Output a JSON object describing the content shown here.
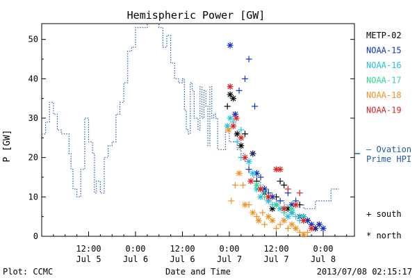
{
  "chart_data": {
    "type": "line",
    "title": "Hemispheric Power [GW]",
    "ylabel": "P [GW]",
    "xlabel": "Date and Time",
    "ylim": [
      0,
      54
    ],
    "yticks": [
      0,
      10,
      20,
      30,
      40,
      50
    ],
    "xlim_hours": [
      0,
      80
    ],
    "xticks": [
      {
        "h": 12,
        "time": "12:00",
        "date": "Jul 5"
      },
      {
        "h": 24,
        "time": "0:00",
        "date": "Jul 6"
      },
      {
        "h": 36,
        "time": "12:00",
        "date": "Jul 6"
      },
      {
        "h": 48,
        "time": "0:00",
        "date": "Jul 7"
      },
      {
        "h": 60,
        "time": "12:00",
        "date": "Jul 7"
      },
      {
        "h": 72,
        "time": "0:00",
        "date": "Jul 8"
      }
    ],
    "ovation": {
      "name": "— Ovation Prime HPI",
      "color": "#1e5aa8",
      "points": [
        [
          0,
          26
        ],
        [
          1,
          29
        ],
        [
          2,
          34
        ],
        [
          3,
          31
        ],
        [
          4,
          27
        ],
        [
          5,
          26
        ],
        [
          6,
          26
        ],
        [
          7,
          21
        ],
        [
          7.5,
          17
        ],
        [
          8,
          12
        ],
        [
          9,
          10
        ],
        [
          10,
          17
        ],
        [
          11,
          30
        ],
        [
          12,
          24
        ],
        [
          13,
          21
        ],
        [
          13.5,
          11
        ],
        [
          14,
          14
        ],
        [
          15,
          11
        ],
        [
          16,
          20
        ],
        [
          17,
          23
        ],
        [
          18,
          24
        ],
        [
          19,
          31
        ],
        [
          20,
          34
        ],
        [
          21,
          39
        ],
        [
          22,
          47
        ],
        [
          23,
          48
        ],
        [
          24,
          53
        ],
        [
          26,
          53
        ],
        [
          27,
          55
        ],
        [
          29,
          55
        ],
        [
          30,
          53
        ],
        [
          31,
          48
        ],
        [
          32,
          51
        ],
        [
          33,
          44
        ],
        [
          34,
          40
        ],
        [
          35,
          39
        ],
        [
          36,
          40
        ],
        [
          36.5,
          32
        ],
        [
          37,
          27
        ],
        [
          37.5,
          26
        ],
        [
          38,
          39
        ],
        [
          38.5,
          37
        ],
        [
          39,
          30
        ],
        [
          40,
          27
        ],
        [
          40.5,
          38
        ],
        [
          41,
          30
        ],
        [
          41.5,
          37
        ],
        [
          42,
          33
        ],
        [
          42.5,
          23
        ],
        [
          43,
          38
        ],
        [
          43.5,
          30
        ],
        [
          44,
          31
        ],
        [
          44.5,
          30
        ],
        [
          45,
          22
        ],
        [
          46,
          22
        ],
        [
          47,
          27
        ],
        [
          48,
          24
        ],
        [
          49,
          24
        ],
        [
          50,
          22
        ],
        [
          51,
          21
        ],
        [
          52,
          19
        ],
        [
          53,
          16
        ],
        [
          54,
          15
        ],
        [
          55,
          14
        ],
        [
          56,
          13
        ],
        [
          57,
          12
        ],
        [
          58,
          11
        ],
        [
          59,
          10
        ],
        [
          60,
          9
        ],
        [
          61,
          9
        ],
        [
          62,
          8
        ],
        [
          63,
          8
        ],
        [
          64,
          8
        ],
        [
          65,
          8
        ],
        [
          66,
          8
        ],
        [
          67,
          7
        ],
        [
          68,
          7
        ],
        [
          69,
          7
        ],
        [
          70,
          9
        ],
        [
          71,
          9
        ],
        [
          72,
          9
        ],
        [
          73,
          9
        ],
        [
          74,
          12
        ],
        [
          76,
          12
        ]
      ]
    },
    "series": [
      {
        "name": "METP-02",
        "color": "#000000",
        "points": [
          [
            47.5,
            33,
            "s"
          ],
          [
            48.2,
            36,
            "n"
          ],
          [
            49,
            35,
            "n"
          ],
          [
            50,
            26,
            "n"
          ],
          [
            51,
            23,
            "n"
          ],
          [
            52,
            26,
            "s"
          ],
          [
            54,
            21,
            "n"
          ],
          [
            55,
            14,
            "s"
          ],
          [
            56,
            12,
            "n"
          ],
          [
            57,
            11,
            "n"
          ],
          [
            58,
            9,
            "s"
          ],
          [
            59,
            7,
            "n"
          ],
          [
            60,
            10,
            "s"
          ],
          [
            61,
            14,
            "s"
          ],
          [
            62,
            13,
            "s"
          ],
          [
            63,
            7,
            "n"
          ],
          [
            64,
            6,
            "n"
          ],
          [
            66,
            8,
            "s"
          ],
          [
            67,
            5,
            "n"
          ],
          [
            68,
            4,
            "n"
          ],
          [
            69,
            3,
            "s"
          ],
          [
            70,
            2,
            "n"
          ],
          [
            71,
            3,
            "n"
          ]
        ]
      },
      {
        "name": "NOAA-15",
        "color": "#1030c8",
        "points": [
          [
            48.2,
            48.5,
            "n"
          ],
          [
            49.5,
            31,
            "n"
          ],
          [
            50.5,
            37,
            "s"
          ],
          [
            52,
            40,
            "s"
          ],
          [
            53,
            45,
            "s"
          ],
          [
            54.5,
            33,
            "s"
          ],
          [
            53,
            17,
            "s"
          ],
          [
            54,
            21,
            "s"
          ],
          [
            55,
            16,
            "n"
          ],
          [
            56,
            15,
            "s"
          ],
          [
            57,
            12,
            "n"
          ],
          [
            58,
            11,
            "s"
          ],
          [
            59,
            10,
            "n"
          ],
          [
            60,
            8,
            "n"
          ],
          [
            61,
            9,
            "s"
          ],
          [
            62,
            7,
            "n"
          ],
          [
            63,
            11,
            "s"
          ],
          [
            64,
            8,
            "n"
          ],
          [
            65,
            9,
            "s"
          ],
          [
            66,
            5,
            "n"
          ],
          [
            67,
            4,
            "s"
          ],
          [
            68,
            4,
            "n"
          ],
          [
            69,
            3,
            "n"
          ],
          [
            70,
            2,
            "s"
          ],
          [
            71,
            3,
            "n"
          ],
          [
            72,
            2,
            "n"
          ]
        ]
      },
      {
        "name": "NOAA-16",
        "color": "#20c0e0",
        "points": [
          [
            47.5,
            28,
            "n"
          ],
          [
            48.2,
            30,
            "n"
          ],
          [
            49,
            29,
            "s"
          ],
          [
            51,
            27,
            "s"
          ],
          [
            50,
            24,
            "s"
          ],
          [
            51,
            20,
            "s"
          ],
          [
            53,
            19,
            "n"
          ],
          [
            54,
            16,
            "n"
          ],
          [
            55,
            12,
            "n"
          ],
          [
            56,
            10,
            "n"
          ],
          [
            57,
            11,
            "s"
          ],
          [
            58,
            9,
            "n"
          ],
          [
            59,
            8,
            "s"
          ],
          [
            61,
            7,
            "n"
          ],
          [
            62,
            6,
            "s"
          ],
          [
            63,
            5,
            "n"
          ],
          [
            64,
            6,
            "n"
          ],
          [
            65,
            5,
            "s"
          ],
          [
            66,
            4,
            "s"
          ],
          [
            67,
            5,
            "n"
          ]
        ]
      },
      {
        "name": "NOAA-17",
        "color": "#30d890",
        "points": [
          [
            55,
            13,
            "n"
          ],
          [
            57,
            10,
            "s"
          ],
          [
            60,
            8,
            "n"
          ],
          [
            62,
            6,
            "s"
          ],
          [
            64,
            7,
            "n"
          ],
          [
            66,
            5,
            "s"
          ]
        ]
      },
      {
        "name": "NOAA-18",
        "color": "#f09020",
        "points": [
          [
            47.8,
            27,
            "n"
          ],
          [
            48.5,
            9,
            "s"
          ],
          [
            49.5,
            13,
            "s"
          ],
          [
            50.5,
            16,
            "n"
          ],
          [
            51.5,
            13,
            "s"
          ],
          [
            52,
            8,
            "n"
          ],
          [
            53,
            8,
            "s"
          ],
          [
            54,
            6,
            "n"
          ],
          [
            55,
            5,
            "s"
          ],
          [
            55.5,
            4,
            "n"
          ],
          [
            56.5,
            6,
            "s"
          ],
          [
            57,
            3,
            "s"
          ],
          [
            58,
            5,
            "n"
          ],
          [
            59,
            4,
            "n"
          ],
          [
            60,
            2,
            "s"
          ],
          [
            61,
            3,
            "s"
          ],
          [
            62,
            4,
            "n"
          ],
          [
            63,
            2,
            "s"
          ],
          [
            64,
            3,
            "n"
          ],
          [
            65,
            2,
            "n"
          ],
          [
            66,
            1,
            "s"
          ],
          [
            67,
            0.5,
            "n"
          ],
          [
            68,
            1,
            "s"
          ]
        ]
      },
      {
        "name": "NOAA-19",
        "color": "#e02020",
        "points": [
          [
            48.2,
            38,
            "n"
          ],
          [
            49,
            28,
            "n"
          ],
          [
            49.8,
            30,
            "n"
          ],
          [
            51,
            25,
            "n"
          ],
          [
            52,
            20,
            "n"
          ],
          [
            53.5,
            14,
            "n"
          ],
          [
            56,
            12,
            "n"
          ],
          [
            58,
            10,
            "n"
          ],
          [
            60,
            17,
            "n"
          ],
          [
            61,
            17,
            "n"
          ],
          [
            62,
            7,
            "n"
          ],
          [
            63,
            12,
            "s"
          ],
          [
            65,
            8,
            "n"
          ],
          [
            66,
            11,
            "s"
          ],
          [
            67,
            4,
            "n"
          ],
          [
            69,
            2,
            "n"
          ]
        ]
      }
    ],
    "legend_placement": "right",
    "marker_legend": {
      "south": "+ south",
      "north": "* north"
    },
    "footer": {
      "left": "Plot: CCMC",
      "right": "2013/07/08 02:15:17"
    }
  }
}
